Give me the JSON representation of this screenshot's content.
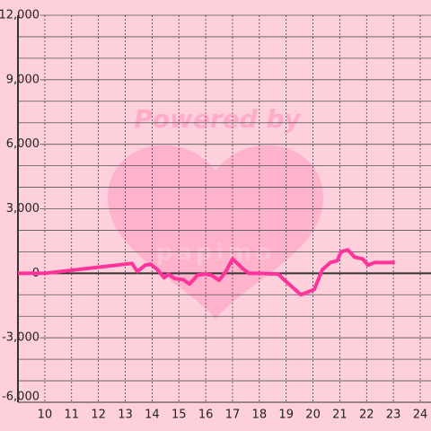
{
  "chart_data": {
    "type": "line",
    "watermark": [
      "Powered by",
      "papimo"
    ],
    "x": [
      9.0,
      10.0,
      13.25,
      13.45,
      13.75,
      13.95,
      14.2,
      14.45,
      14.6,
      14.85,
      15.15,
      15.4,
      15.7,
      16.0,
      16.2,
      16.5,
      16.75,
      17.0,
      17.35,
      17.6,
      18.0,
      18.7,
      18.95,
      19.25,
      19.55,
      19.8,
      20.05,
      20.35,
      20.65,
      20.9,
      21.05,
      21.3,
      21.55,
      21.85,
      22.05,
      22.3,
      23.05
    ],
    "series": [
      {
        "color": "#ff3399",
        "values": [
          0,
          0,
          460,
          80,
          380,
          420,
          170,
          -210,
          -40,
          -250,
          -290,
          -500,
          -80,
          -40,
          -80,
          -330,
          80,
          670,
          250,
          0,
          0,
          -40,
          -330,
          -670,
          -1000,
          -880,
          -750,
          170,
          500,
          580,
          1000,
          1090,
          750,
          670,
          380,
          500,
          500
        ]
      }
    ],
    "xlim": [
      9,
      24.4
    ],
    "xticks": [
      10,
      11,
      12,
      13,
      14,
      15,
      16,
      17,
      18,
      19,
      20,
      21,
      22,
      23,
      24
    ],
    "ylim": [
      -6000,
      12000
    ],
    "yticks": [
      {
        "value": -6000,
        "label": "-6,000"
      },
      {
        "value": -3000,
        "label": "-3,000"
      },
      0,
      {
        "value": 3000,
        "label": "3,000"
      },
      {
        "value": 6000,
        "label": "6,000"
      },
      {
        "value": 9000,
        "label": "9,000"
      },
      {
        "value": 12000,
        "label": "12,000"
      }
    ],
    "ygrid": [
      -5000,
      -4000,
      -2000,
      -1000,
      1000,
      2000,
      4000,
      5000,
      7000,
      8000,
      10000,
      11000
    ],
    "grid": true
  }
}
